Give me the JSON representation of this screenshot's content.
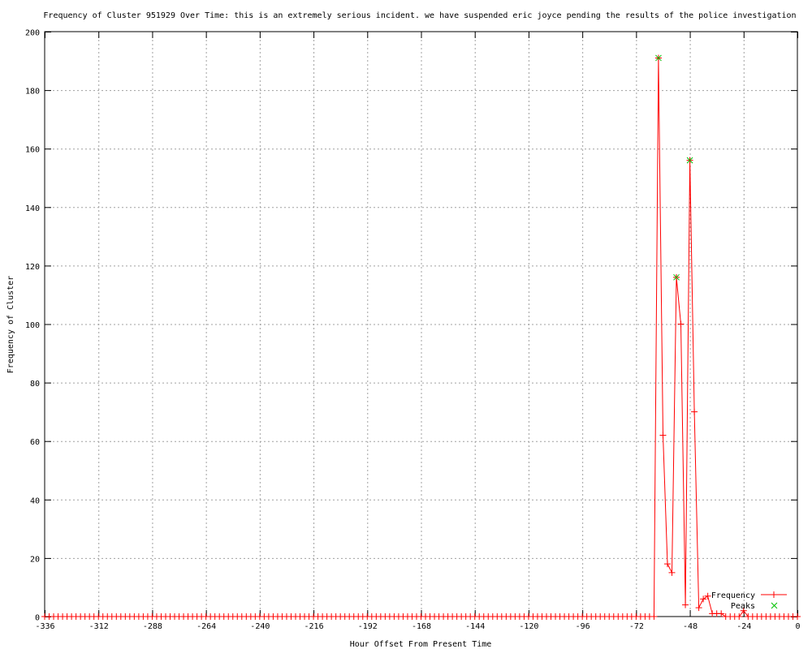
{
  "chart_data": {
    "type": "line",
    "title": "Frequency of Cluster 951929 Over Time: this is an extremely serious incident. we have suspended eric joyce pending the results of the police investigation",
    "xlabel": "Hour Offset From Present Time",
    "ylabel": "Frequency of Cluster",
    "xlim": [
      -336,
      0
    ],
    "ylim": [
      0,
      200
    ],
    "xticks": [
      -336,
      -312,
      -288,
      -264,
      -240,
      -216,
      -192,
      -168,
      -144,
      -120,
      -96,
      -72,
      -48,
      -24,
      0
    ],
    "yticks": [
      0,
      20,
      40,
      60,
      80,
      100,
      120,
      140,
      160,
      180,
      200
    ],
    "grid": true,
    "legend_position": "bottom-right",
    "series": [
      {
        "name": "Frequency",
        "color": "#ff0000",
        "marker": "plus",
        "x": [
          -336,
          -334,
          -332,
          -330,
          -328,
          -326,
          -324,
          -322,
          -320,
          -318,
          -316,
          -314,
          -312,
          -310,
          -308,
          -306,
          -304,
          -302,
          -300,
          -298,
          -296,
          -294,
          -292,
          -290,
          -288,
          -286,
          -284,
          -282,
          -280,
          -278,
          -276,
          -274,
          -272,
          -270,
          -268,
          -266,
          -264,
          -262,
          -260,
          -258,
          -256,
          -254,
          -252,
          -250,
          -248,
          -246,
          -244,
          -242,
          -240,
          -238,
          -236,
          -234,
          -232,
          -230,
          -228,
          -226,
          -224,
          -222,
          -220,
          -218,
          -216,
          -214,
          -212,
          -210,
          -208,
          -206,
          -204,
          -202,
          -200,
          -198,
          -196,
          -194,
          -192,
          -190,
          -188,
          -186,
          -184,
          -182,
          -180,
          -178,
          -176,
          -174,
          -172,
          -170,
          -168,
          -166,
          -164,
          -162,
          -160,
          -158,
          -156,
          -154,
          -152,
          -150,
          -148,
          -146,
          -144,
          -142,
          -140,
          -138,
          -136,
          -134,
          -132,
          -130,
          -128,
          -126,
          -124,
          -122,
          -120,
          -118,
          -116,
          -114,
          -112,
          -110,
          -108,
          -106,
          -104,
          -102,
          -100,
          -98,
          -96,
          -94,
          -92,
          -90,
          -88,
          -86,
          -84,
          -82,
          -80,
          -78,
          -76,
          -74,
          -72,
          -70,
          -68,
          -66,
          -64,
          -62,
          -60,
          -58,
          -56,
          -54,
          -52,
          -50,
          -48,
          -46,
          -44,
          -42,
          -40,
          -38,
          -36,
          -34,
          -32,
          -30,
          -28,
          -26,
          -24,
          -22,
          -20,
          -18,
          -16,
          -14,
          -12,
          -10,
          -8,
          -6,
          -4,
          -2,
          0
        ],
        "y": [
          0,
          0,
          0,
          0,
          0,
          0,
          0,
          0,
          0,
          0,
          0,
          0,
          0,
          0,
          0,
          0,
          0,
          0,
          0,
          0,
          0,
          0,
          0,
          0,
          0,
          0,
          0,
          0,
          0,
          0,
          0,
          0,
          0,
          0,
          0,
          0,
          0,
          0,
          0,
          0,
          0,
          0,
          0,
          0,
          0,
          0,
          0,
          0,
          0,
          0,
          0,
          0,
          0,
          0,
          0,
          0,
          0,
          0,
          0,
          0,
          0,
          0,
          0,
          0,
          0,
          0,
          0,
          0,
          0,
          0,
          0,
          0,
          0,
          0,
          0,
          0,
          0,
          0,
          0,
          0,
          0,
          0,
          0,
          0,
          0,
          0,
          0,
          0,
          0,
          0,
          0,
          0,
          0,
          0,
          0,
          0,
          0,
          0,
          0,
          0,
          0,
          0,
          0,
          0,
          0,
          0,
          0,
          0,
          0,
          0,
          0,
          0,
          0,
          0,
          0,
          0,
          0,
          0,
          0,
          0,
          0,
          0,
          0,
          0,
          0,
          0,
          0,
          0,
          0,
          0,
          0,
          0,
          0,
          0,
          0,
          0,
          0,
          191,
          62,
          18,
          15,
          116,
          100,
          4,
          156,
          70,
          3,
          6,
          7,
          1,
          1,
          1,
          0,
          0,
          0,
          0,
          2,
          0,
          0,
          0,
          0,
          0,
          0,
          0,
          0,
          0,
          0,
          0,
          0
        ]
      },
      {
        "name": "Peaks",
        "color": "#00c000",
        "marker": "cross",
        "x": [
          -62,
          -54,
          -48
        ],
        "y": [
          191,
          116,
          156
        ]
      }
    ]
  }
}
